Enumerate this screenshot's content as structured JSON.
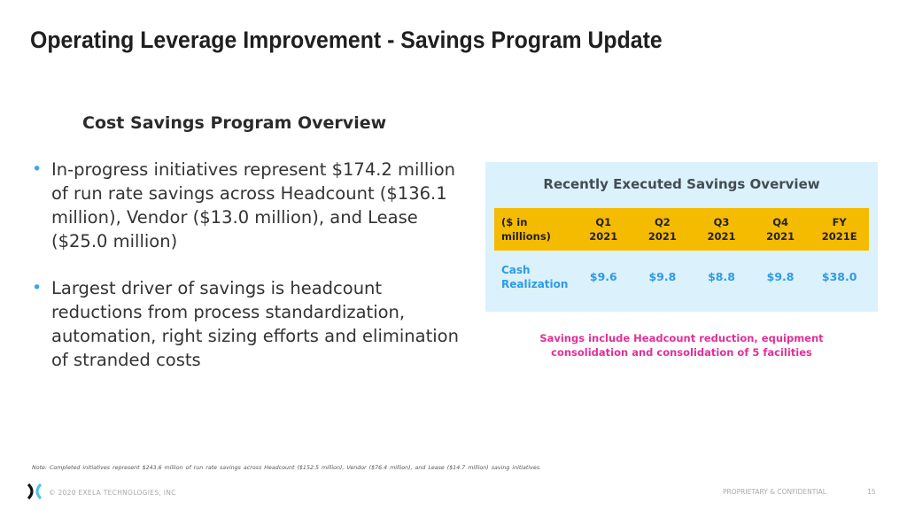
{
  "title": "Operating Leverage Improvement - Savings Program Update",
  "subtitle": "Cost Savings Program Overview",
  "bullets": [
    "In-progress initiatives represent $174.2 million of run rate savings across Headcount ($136.1 million), Vendor ($13.0 million), and Lease ($25.0 million)",
    "Largest driver of savings is headcount reductions from process standardization, automation, right sizing efforts and elimination of stranded costs"
  ],
  "panel": {
    "title": "Recently Executed Savings Overview",
    "headers": [
      [
        "($ in",
        "millions)"
      ],
      [
        "Q1",
        "2021"
      ],
      [
        "Q2",
        "2021"
      ],
      [
        "Q3",
        "2021"
      ],
      [
        "Q4",
        "2021"
      ],
      [
        "FY",
        "2021E"
      ]
    ],
    "row": {
      "label": [
        "Cash",
        "Realization"
      ],
      "values": [
        "$9.6",
        "$9.8",
        "$8.8",
        "$9.8",
        "$38.0"
      ]
    }
  },
  "callout": [
    "Savings include Headcount reduction, equipment",
    "consolidation and consolidation of 5 facilities"
  ],
  "note": "Note: Completed initiatives represent $243.6 million of run rate savings across Headcount ($152.5 million), Vendor ($76.4 million), and Lease ($14.7 million) saving initiatives.",
  "footer": {
    "copyright": "© 2020 EXELA TECHNOLOGIES, INC",
    "confidential": "PROPRIETARY & CONFIDENTIAL",
    "page": "15"
  },
  "colors": {
    "accent": "#3aa9e0",
    "header_bg": "#f5bb00",
    "panel_bg": "#dbf1fb",
    "callout": "#e0309a"
  }
}
